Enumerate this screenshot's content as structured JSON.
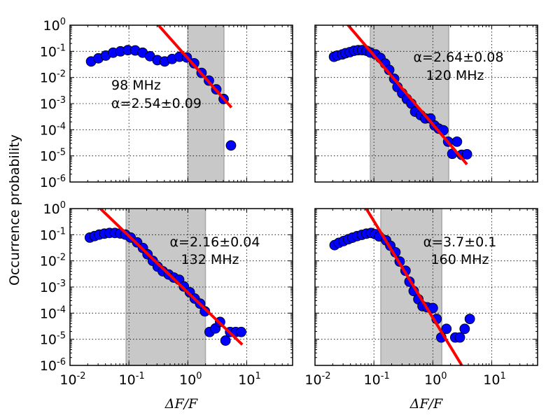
{
  "figure": {
    "ylabel": "Occurrence probability",
    "xlabel": "ΔF/F"
  },
  "colors": {
    "marker": "#0000ff",
    "marker_edge": "#000000",
    "fit_line": "#ff0000",
    "shade": "#c8c8c8"
  },
  "chart_data": [
    {
      "type": "scatter",
      "panel": "top-left",
      "xscale": "log",
      "yscale": "log",
      "xlim": [
        0.01,
        60
      ],
      "ylim": [
        1e-06,
        1
      ],
      "grid": true,
      "xticks": [
        -2,
        -1,
        0,
        1
      ],
      "yticks": [
        -6,
        -5,
        -4,
        -3,
        -2,
        -1,
        0
      ],
      "show_xticklabels": false,
      "show_yticklabels": true,
      "annotations": [
        "98 MHz",
        "α=2.54±0.09"
      ],
      "shaded_range": [
        1.0,
        4.1
      ],
      "fit": {
        "alpha": 2.54,
        "alpha_err": 0.09,
        "amplitude": 0.054,
        "x_range": [
          0.3,
          5.5
        ]
      },
      "x": [
        0.0228,
        0.0303,
        0.0404,
        0.0539,
        0.0719,
        0.0959,
        0.128,
        0.171,
        0.228,
        0.304,
        0.405,
        0.541,
        0.721,
        0.962,
        1.28,
        1.71,
        2.28,
        3.04,
        4.06,
        5.4
      ],
      "y": [
        0.041,
        0.054,
        0.069,
        0.089,
        0.1,
        0.111,
        0.108,
        0.089,
        0.065,
        0.046,
        0.041,
        0.051,
        0.062,
        0.058,
        0.035,
        0.015,
        0.0076,
        0.0035,
        0.0015,
        2.5e-05
      ]
    },
    {
      "type": "scatter",
      "panel": "top-right",
      "xscale": "log",
      "yscale": "log",
      "xlim": [
        0.01,
        60
      ],
      "ylim": [
        1e-06,
        1
      ],
      "grid": true,
      "xticks": [
        -2,
        -1,
        0,
        1
      ],
      "yticks": [
        -6,
        -5,
        -4,
        -3,
        -2,
        -1,
        0
      ],
      "show_xticklabels": false,
      "show_yticklabels": false,
      "annotations": [
        "α=2.64±0.08",
        "120 MHz"
      ],
      "shaded_range": [
        0.087,
        1.86
      ],
      "fit": {
        "alpha": 2.64,
        "alpha_err": 0.08,
        "amplitude": 0.00016,
        "x_range": [
          0.035,
          3.8
        ]
      },
      "x": [
        0.021,
        0.024,
        0.029,
        0.033,
        0.039,
        0.046,
        0.054,
        0.063,
        0.075,
        0.087,
        0.107,
        0.129,
        0.155,
        0.182,
        0.221,
        0.251,
        0.302,
        0.363,
        0.432,
        0.501,
        0.622,
        0.746,
        0.912,
        1.07,
        1.26,
        1.51,
        1.82,
        2.14,
        2.57,
        3.09,
        3.8
      ],
      "y": [
        0.062,
        0.069,
        0.076,
        0.085,
        0.093,
        0.105,
        0.111,
        0.111,
        0.105,
        0.09,
        0.076,
        0.056,
        0.034,
        0.0195,
        0.0089,
        0.0043,
        0.0025,
        0.0015,
        0.001,
        0.00049,
        0.00036,
        0.00027,
        0.00027,
        0.000145,
        0.00011,
        9.5e-05,
        3.5e-05,
        1.2e-05,
        3.5e-05,
        1.1e-05,
        1.15e-05
      ]
    },
    {
      "type": "scatter",
      "panel": "bottom-left",
      "xscale": "log",
      "yscale": "log",
      "xlim": [
        0.01,
        60
      ],
      "ylim": [
        1e-06,
        1
      ],
      "grid": true,
      "xticks": [
        -2,
        -1,
        0,
        1
      ],
      "yticks": [
        -6,
        -5,
        -4,
        -3,
        -2,
        -1,
        0
      ],
      "show_xticklabels": true,
      "show_yticklabels": true,
      "annotations": [
        "α=2.16±0.04",
        "132 MHz"
      ],
      "shaded_range": [
        0.0895,
        1.99
      ],
      "fit": {
        "alpha": 2.16,
        "alpha_err": 0.04,
        "amplitude": 0.00062,
        "x_range": [
          0.03,
          8.4
        ]
      },
      "x": [
        0.0217,
        0.0261,
        0.0313,
        0.0383,
        0.0469,
        0.0578,
        0.0713,
        0.0871,
        0.107,
        0.138,
        0.173,
        0.207,
        0.254,
        0.308,
        0.376,
        0.473,
        0.578,
        0.713,
        0.857,
        1.08,
        1.31,
        1.62,
        1.95,
        2.34,
        2.94,
        3.53,
        4.36,
        5.22,
        6.5,
        8.04
      ],
      "y": [
        0.078,
        0.089,
        0.101,
        0.11,
        0.117,
        0.117,
        0.112,
        0.101,
        0.078,
        0.051,
        0.031,
        0.0178,
        0.01,
        0.006,
        0.004,
        0.003,
        0.0023,
        0.0019,
        0.00105,
        0.00063,
        0.00036,
        0.00023,
        0.000117,
        1.9e-05,
        2.6e-05,
        4.6e-05,
        8.9e-06,
        1.9e-05,
        1.9e-05,
        1.9e-05
      ]
    },
    {
      "type": "scatter",
      "panel": "bottom-right",
      "xscale": "log",
      "yscale": "log",
      "xlim": [
        0.01,
        60
      ],
      "ylim": [
        1e-06,
        1
      ],
      "grid": true,
      "xticks": [
        -2,
        -1,
        0,
        1
      ],
      "yticks": [
        -6,
        -5,
        -4,
        -3,
        -2,
        -1,
        0
      ],
      "show_xticklabels": true,
      "show_yticklabels": false,
      "annotations": [
        "α=3.7±0.1",
        "160 MHz"
      ],
      "shaded_range": [
        0.131,
        1.42
      ],
      "fit": {
        "alpha": 3.7,
        "alpha_err": 0.1,
        "amplitude": 6.6e-05,
        "x_range": [
          0.07,
          4.0
        ]
      },
      "x": [
        0.0215,
        0.0254,
        0.0305,
        0.0366,
        0.0432,
        0.0518,
        0.0622,
        0.0746,
        0.0895,
        0.105,
        0.123,
        0.161,
        0.19,
        0.232,
        0.274,
        0.344,
        0.401,
        0.473,
        0.568,
        0.668,
        0.804,
        1.0,
        1.16,
        1.39,
        1.7,
        2.4,
        2.88,
        3.47,
        4.24
      ],
      "y": [
        0.04,
        0.049,
        0.057,
        0.067,
        0.077,
        0.089,
        0.099,
        0.11,
        0.117,
        0.105,
        0.086,
        0.061,
        0.038,
        0.0213,
        0.0094,
        0.0042,
        0.0016,
        0.0007,
        0.00034,
        0.000185,
        0.000167,
        0.000157,
        6e-05,
        1.17e-05,
        2.5e-05,
        1.17e-05,
        1.17e-05,
        2.5e-05,
        6e-05
      ]
    }
  ]
}
